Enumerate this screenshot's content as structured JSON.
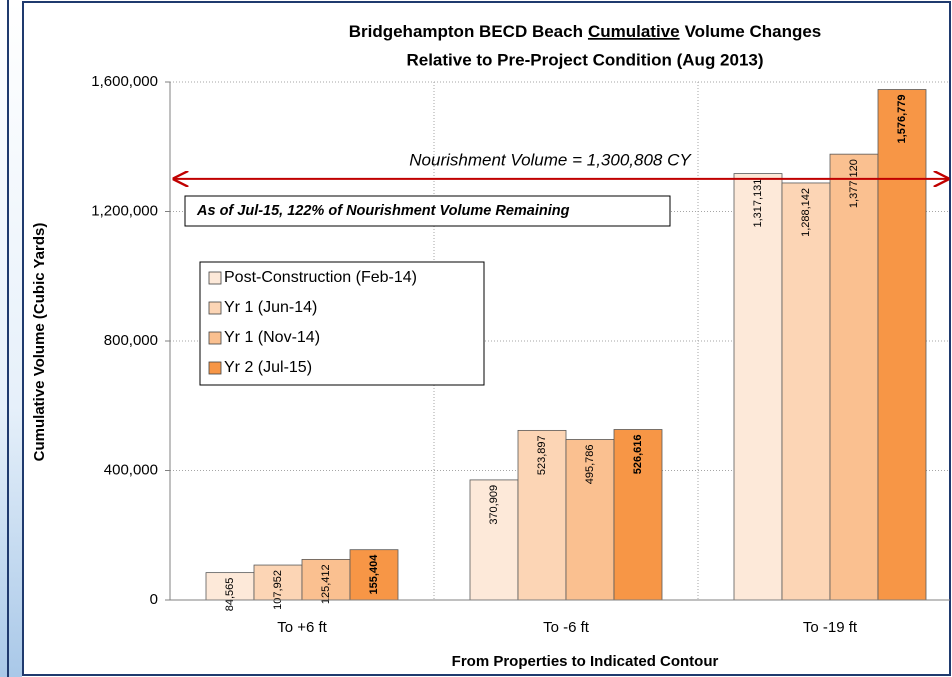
{
  "chart_data": {
    "type": "bar",
    "title_prefix": "Bridgehampton BECD Beach",
    "title_underlined": "Cumulative",
    "title_suffix": "Volume Changes",
    "subtitle": "Relative to Pre-Project Condition (Aug 2013)",
    "x_label": "From Properties to Indicated Contour",
    "y_label": "Cumulative Volume (Cubic Yards)",
    "categories": [
      "To +6 ft",
      "To -6 ft",
      "To -19 ft"
    ],
    "series": [
      {
        "name": "Post-Construction (Feb-14)",
        "color": "#fde9d9",
        "values": [
          84565,
          370909,
          1317131
        ],
        "value_labels": [
          "84,565",
          "370,909",
          "1,317,131"
        ]
      },
      {
        "name": "Yr 1 (Jun-14)",
        "color": "#fcd5b5",
        "values": [
          107952,
          523897,
          1288142
        ],
        "value_labels": [
          "107,952",
          "523,897",
          "1,288,142"
        ]
      },
      {
        "name": "Yr 1 (Nov-14)",
        "color": "#fac090",
        "values": [
          125412,
          495786,
          1377120
        ],
        "value_labels": [
          "125,412",
          "495,786",
          "1,377,120"
        ]
      },
      {
        "name": "Yr 2 (Jul-15)",
        "color": "#f79646",
        "values": [
          155404,
          526616,
          1576779
        ],
        "value_labels": [
          "155,404",
          "526,616",
          "1,576,779"
        ]
      }
    ],
    "ylim": [
      0,
      1600000
    ],
    "yticks": [
      0,
      {
        "value": 400000,
        "label": "400,000"
      },
      {
        "value": 800000,
        "label": "800,000"
      },
      {
        "value": 1200000,
        "label": "1,200,000"
      },
      {
        "value": 1600000,
        "label": "1,600,000"
      }
    ],
    "grid": true,
    "nourishment_volume": 1300808,
    "nourishment_label": "Nourishment Volume = 1,300,808 CY",
    "nourishment_color": "#c00000",
    "annotation": "As of Jul-15, 122% of Nourishment Volume Remaining"
  }
}
